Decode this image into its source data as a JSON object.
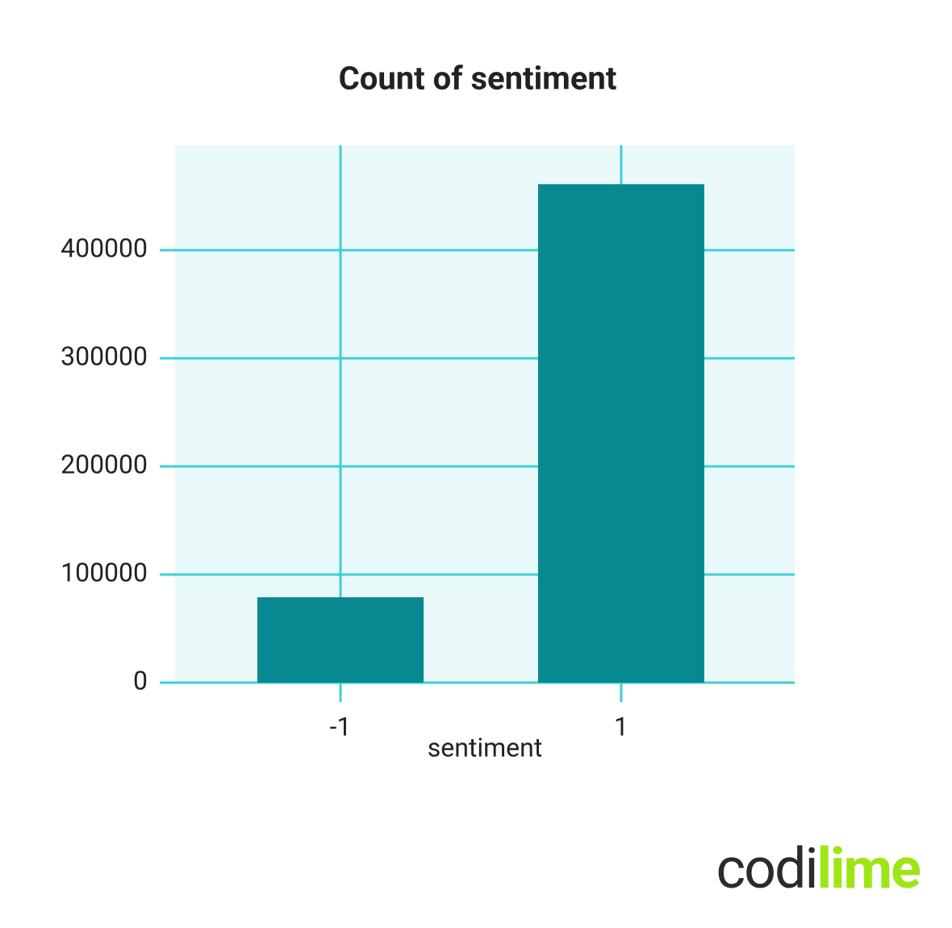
{
  "chart_data": {
    "type": "bar",
    "title": "Count of sentiment",
    "x_label": "sentiment",
    "categories": [
      "-1",
      "1"
    ],
    "values": [
      79000,
      461000
    ],
    "color": "#088890",
    "ylim": [
      0,
      497000
    ],
    "yticks": [
      0,
      100000,
      200000,
      300000,
      400000
    ],
    "grid": true
  },
  "logo": {
    "dark": "codi",
    "green": "lime"
  }
}
